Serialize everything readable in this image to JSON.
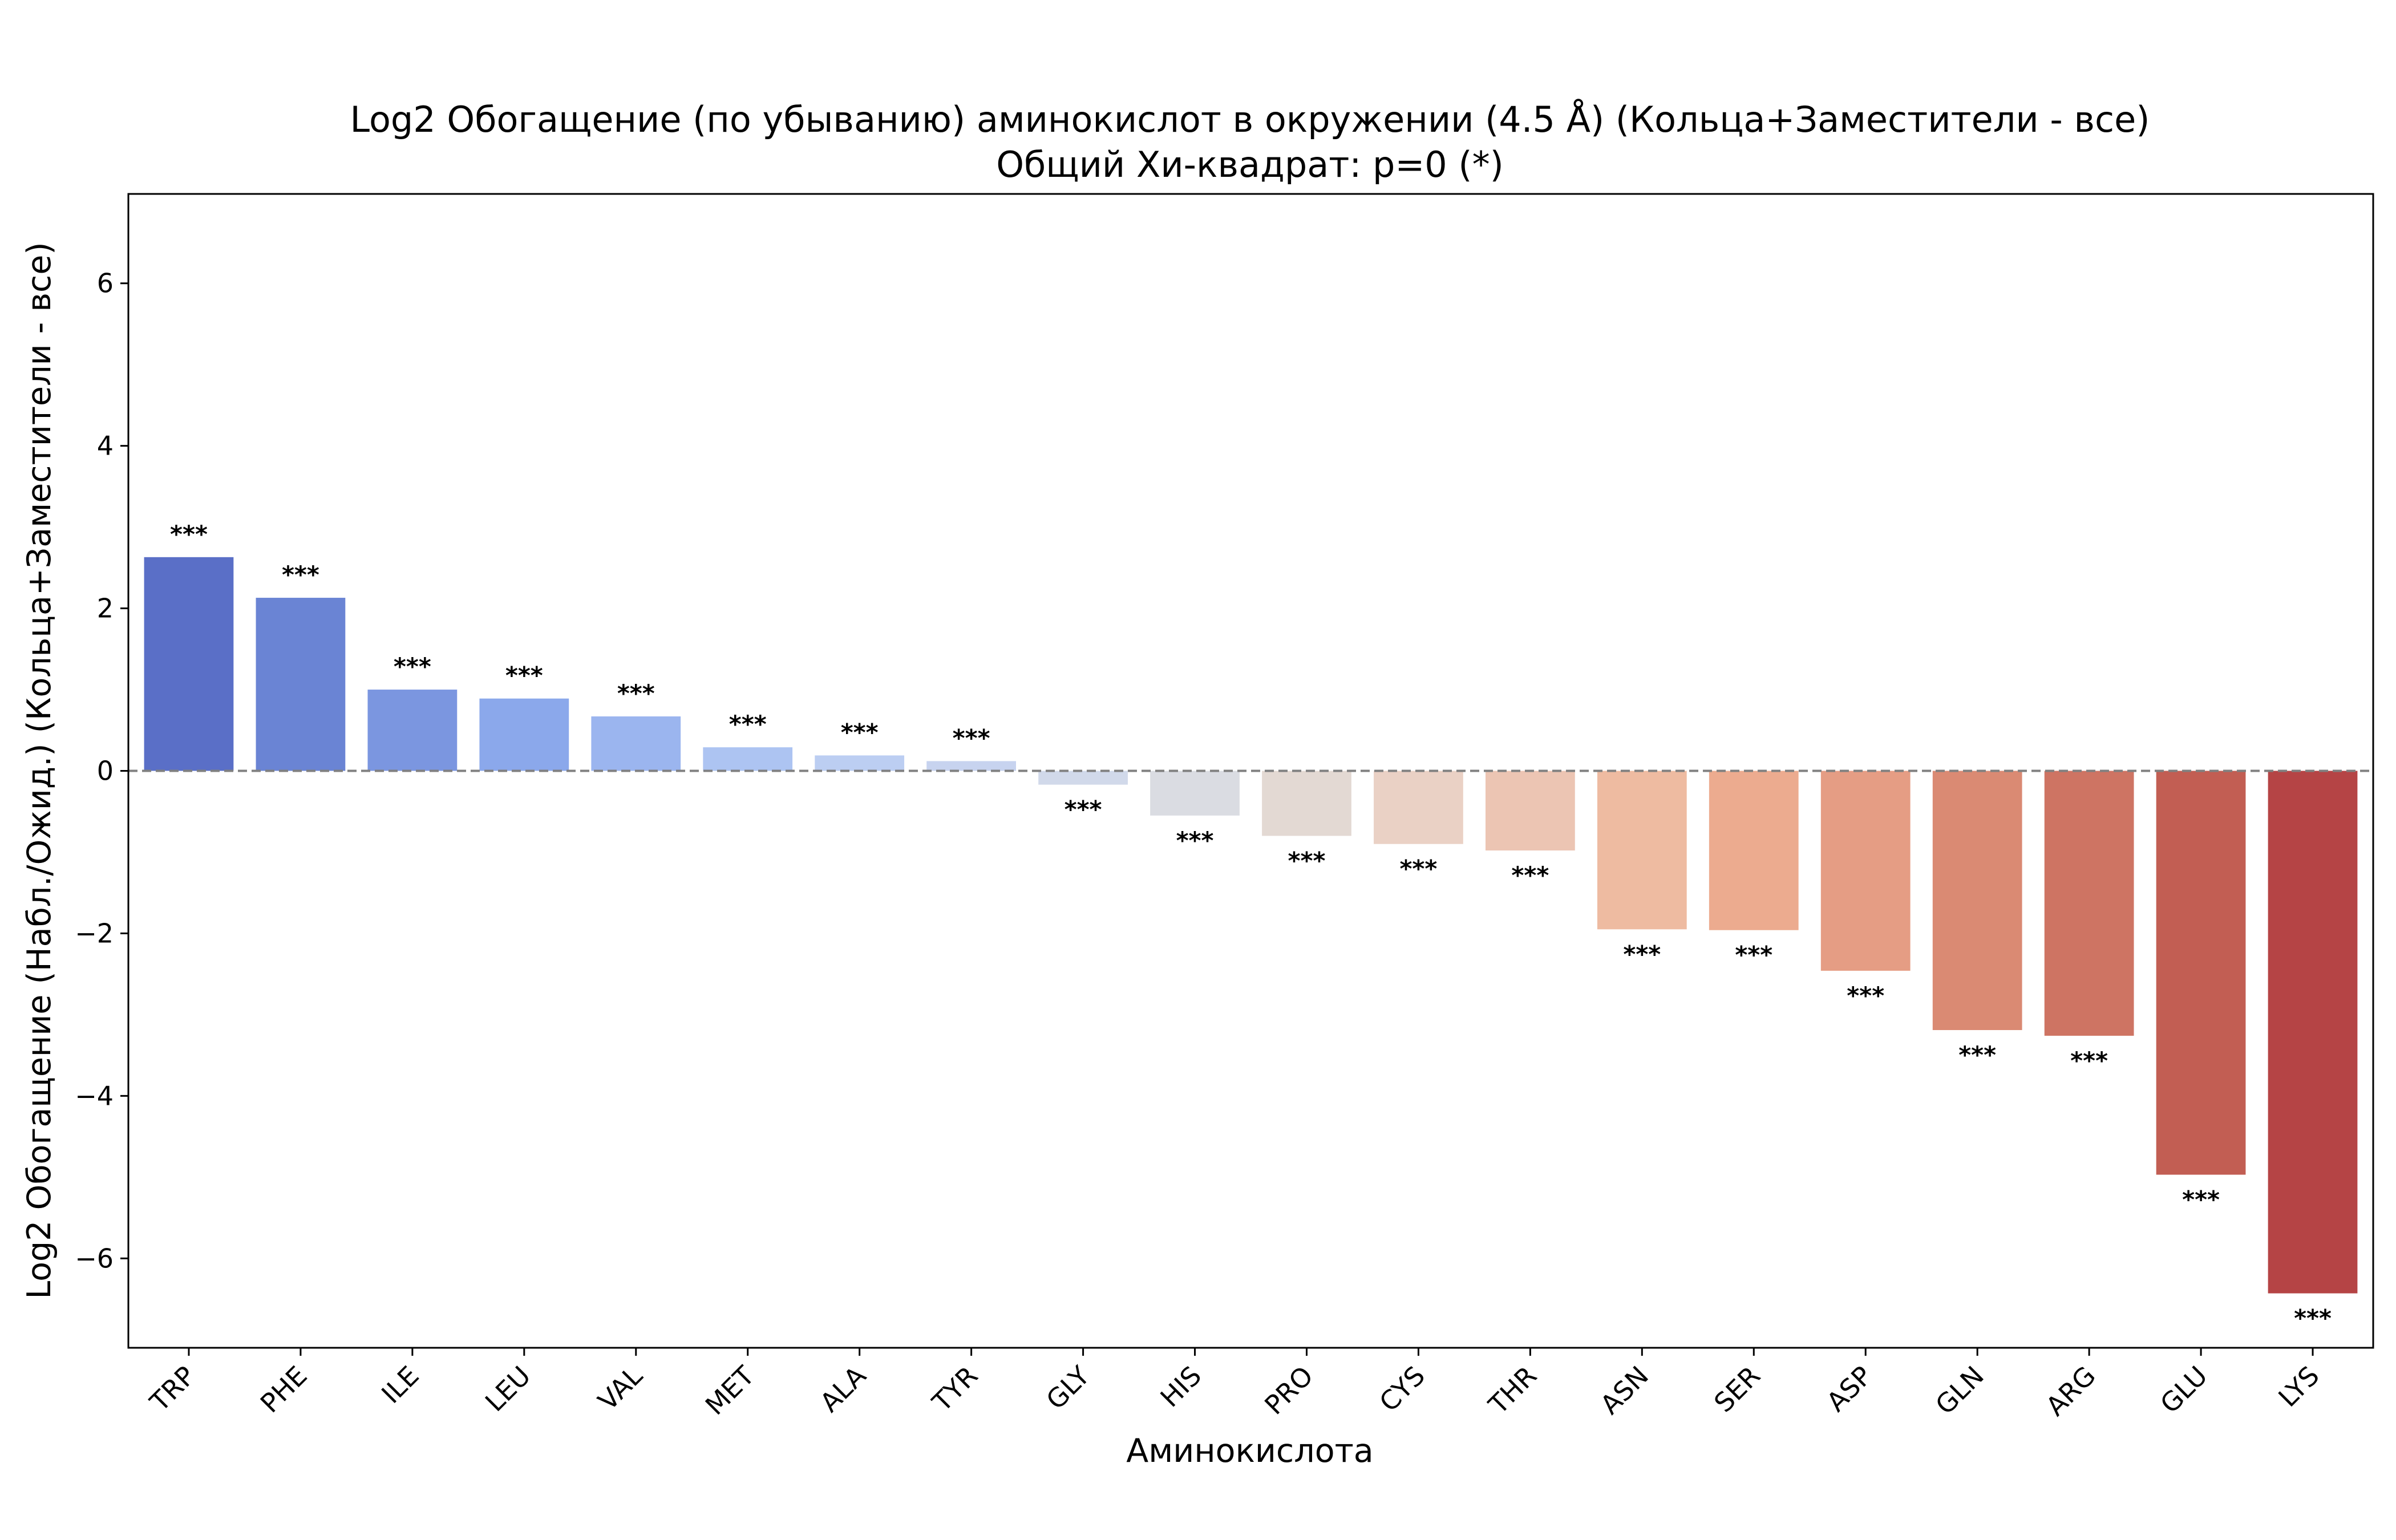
{
  "chart_data": {
    "type": "bar",
    "title": "Log2 Обогащение (по убыванию) аминокислот в окружении (4.5 Å) (Кольца+Заместители - все)",
    "subtitle": "Общий Хи-квадрат: p=0 (*)",
    "xlabel": "Аминокислота",
    "ylabel": "Log2 Обогащение (Набл./Ожид.) (Кольца+Заместители - все)",
    "ylim": [
      -7.1,
      7.1
    ],
    "yticks": [
      -6,
      -4,
      -2,
      0,
      2,
      4,
      6
    ],
    "ytick_labels": [
      "−6",
      "−4",
      "−2",
      "0",
      "2",
      "4",
      "6"
    ],
    "grid": false,
    "reference_line": 0,
    "categories": [
      "TRP",
      "PHE",
      "ILE",
      "LEU",
      "VAL",
      "MET",
      "ALA",
      "TYR",
      "GLY",
      "HIS",
      "PRO",
      "CYS",
      "THR",
      "ASN",
      "SER",
      "ASP",
      "GLN",
      "ARG",
      "GLU",
      "LYS"
    ],
    "values": [
      2.63,
      2.13,
      1.0,
      0.89,
      0.67,
      0.29,
      0.19,
      0.12,
      -0.17,
      -0.55,
      -0.8,
      -0.9,
      -0.98,
      -1.95,
      -1.96,
      -2.46,
      -3.19,
      -3.26,
      -4.97,
      -6.43
    ],
    "significance": [
      "***",
      "***",
      "***",
      "***",
      "***",
      "***",
      "***",
      "***",
      "***",
      "***",
      "***",
      "***",
      "***",
      "***",
      "***",
      "***",
      "***",
      "***",
      "***",
      "***"
    ],
    "colors": [
      "#5a6fc7",
      "#6a84d4",
      "#7b96e0",
      "#8ba8eb",
      "#9bb5ef",
      "#adc4f2",
      "#bccef2",
      "#c7d3ef",
      "#d1d9ea",
      "#dadce2",
      "#e3d9d3",
      "#ead1c5",
      "#ecc5b3",
      "#eebba1",
      "#ecab8f",
      "#e59d84",
      "#da8a73",
      "#ce7463",
      "#c25e53",
      "#b54445"
    ]
  }
}
